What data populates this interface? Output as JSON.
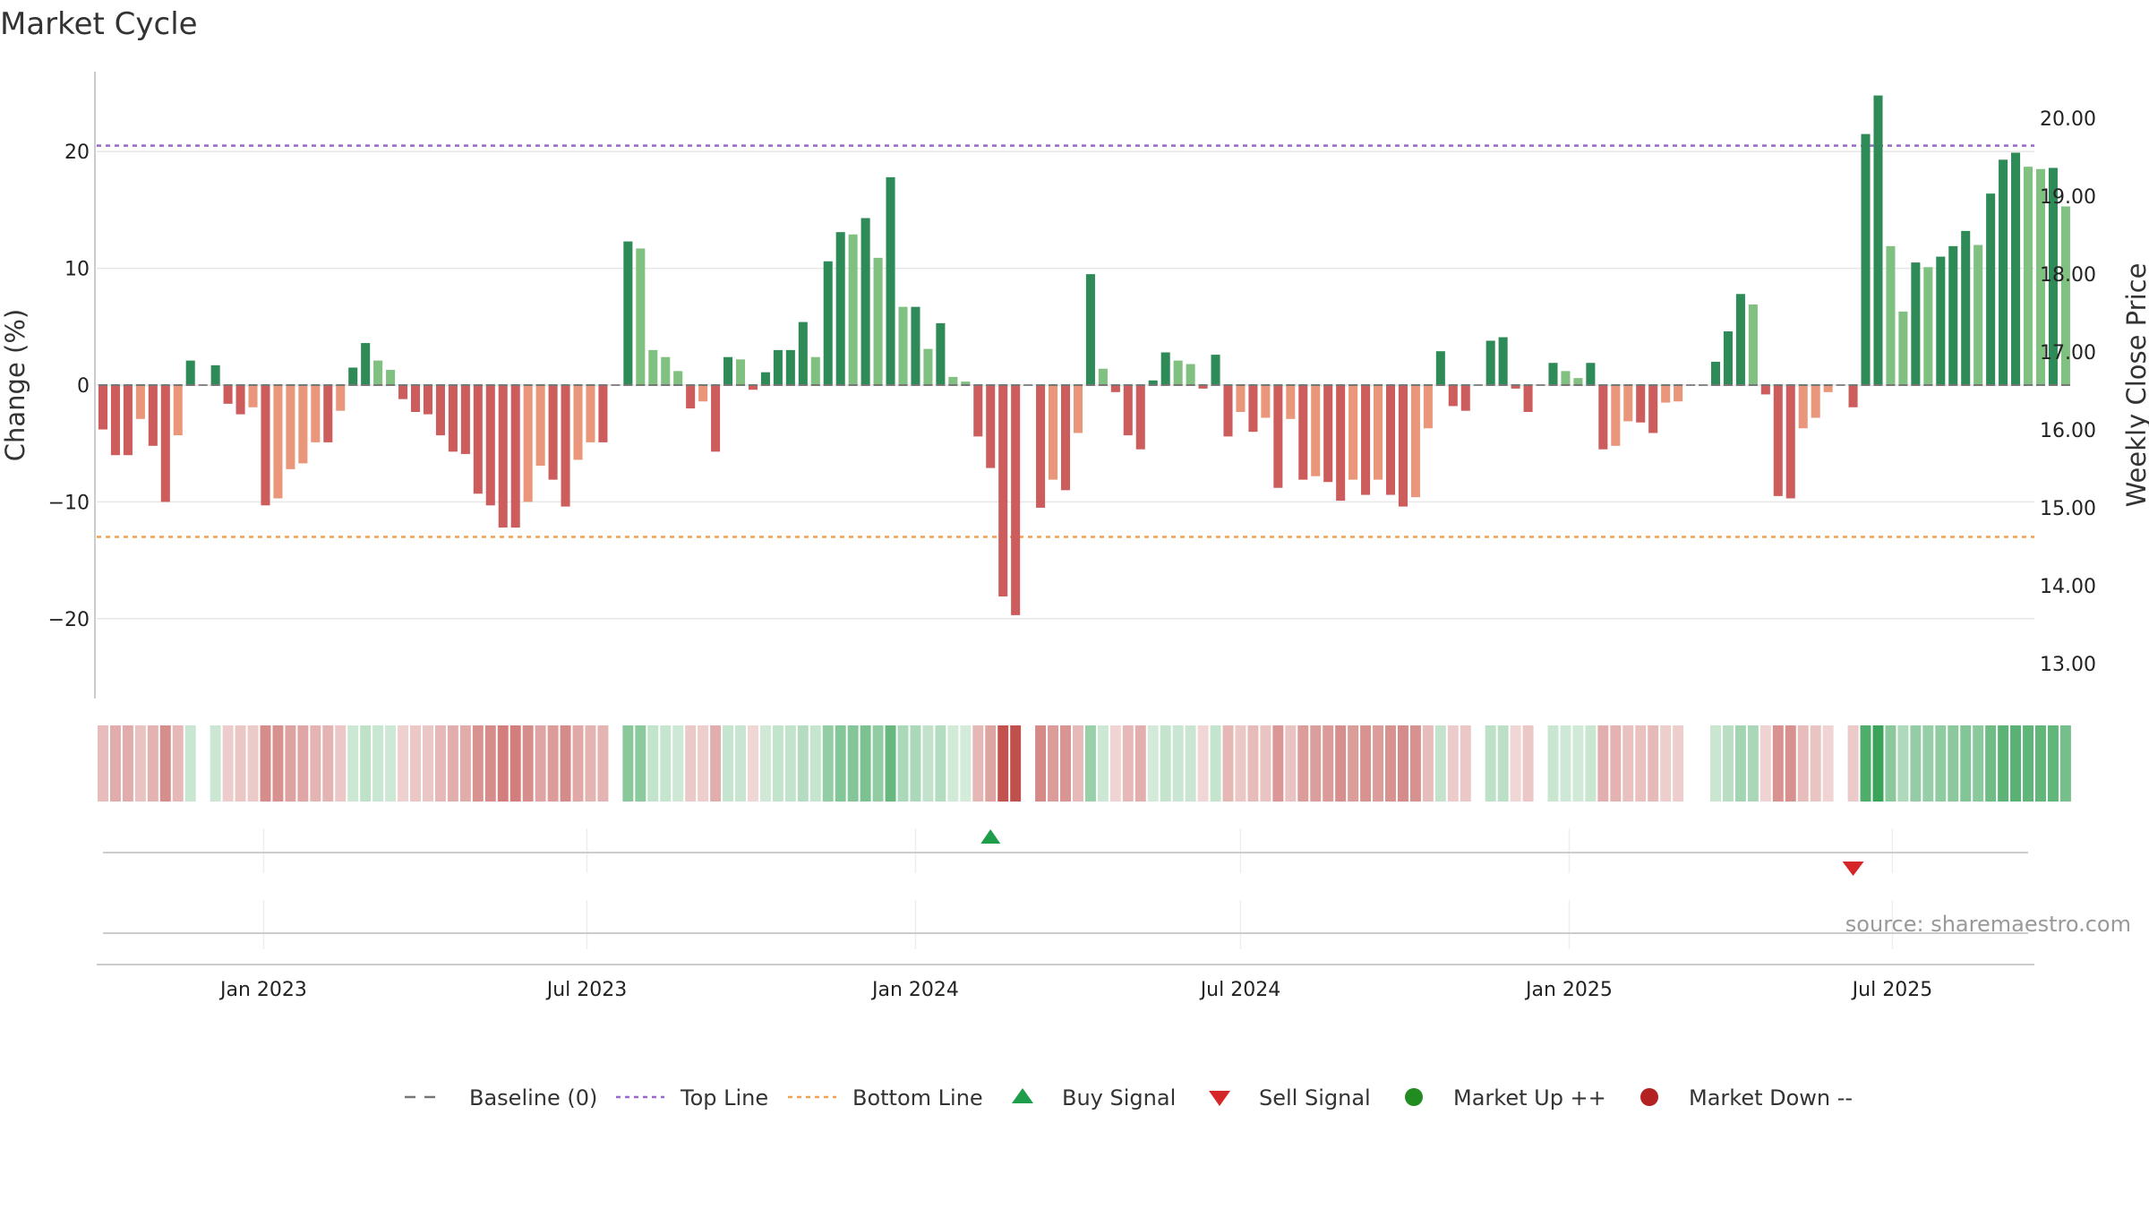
{
  "title": "Market Cycle",
  "source_text": "source: sharemaestro.com",
  "colors": {
    "up_strong": "#2e8b57",
    "up_light": "#80c080",
    "down_strong": "#cd5c5c",
    "down_light": "#e9967a",
    "top_line": "#9966cc",
    "bottom_line": "#f0a050",
    "buy": "#1e9e4a",
    "sell": "#d62728",
    "market_up": "#228b22",
    "market_down": "#b22222"
  },
  "legend": [
    {
      "key": "baseline",
      "label": "Baseline (0)"
    },
    {
      "key": "top",
      "label": "Top Line"
    },
    {
      "key": "bottom",
      "label": "Bottom Line"
    },
    {
      "key": "buy",
      "label": "Buy Signal"
    },
    {
      "key": "sell",
      "label": "Sell Signal"
    },
    {
      "key": "mup",
      "label": "Market Up ++"
    },
    {
      "key": "mdown",
      "label": "Market Down --"
    }
  ],
  "chart_data": {
    "type": "bar",
    "title": "Market Cycle",
    "xlabel": "",
    "ylabel": "Change (%)",
    "y2label": "Weekly Close Price",
    "ylim": [
      -27,
      27
    ],
    "yticks": [
      -20,
      -10,
      0,
      10,
      20
    ],
    "yticklabels": [
      "−20",
      "−10",
      "0",
      "10",
      "20"
    ],
    "y2ticks": [
      "13.00",
      "14.00",
      "15.00",
      "16.00",
      "17.00",
      "18.00",
      "19.00",
      "20.00"
    ],
    "x_start": "2022-10-03",
    "x_step_days": 7,
    "x_end": "2025-09-15",
    "xticks": [
      "2023-01-01",
      "2023-07-01",
      "2024-01-01",
      "2024-07-01",
      "2025-01-01",
      "2025-07-01"
    ],
    "xticklabels": [
      "Jan 2023",
      "Jul 2023",
      "Jan 2024",
      "Jul 2024",
      "Jan 2025",
      "Jul 2025"
    ],
    "top_line": 20.5,
    "bottom_line": -13,
    "grid": true,
    "legend_position": "bottom",
    "series": [
      {
        "values": [
          -3.8,
          -6,
          -6,
          -2.9,
          -5.2,
          -10,
          -4.3,
          2.1,
          0,
          1.7,
          -1.6,
          -2.5,
          -1.9,
          -10.3,
          -9.7,
          -7.2,
          -6.7,
          -4.9,
          -4.9,
          -2.2,
          1.5,
          3.6,
          2.1,
          1.3,
          -1.2,
          -2.3,
          -2.5,
          -4.3,
          -5.7,
          -5.9,
          -9.3,
          -10.3,
          -12.2,
          -12.2,
          -10,
          -6.9,
          -8.1,
          -10.4,
          -6.4,
          -4.9,
          -4.9,
          0,
          12.3,
          11.7,
          3,
          2.4,
          1.2,
          -2,
          -1.4,
          -5.7,
          2.4,
          2.2,
          -0.4,
          1.1,
          3,
          3,
          5.4,
          2.4,
          10.6,
          13.1,
          12.9,
          14.3,
          10.9,
          17.8,
          6.7,
          6.7,
          3.1,
          5.3,
          0.7,
          0.3,
          -4.4,
          -7.1,
          -18.1,
          -19.7,
          0,
          -10.5,
          -8.1,
          -9,
          -4.1,
          9.5,
          1.4,
          -0.6,
          -4.3,
          -5.5,
          0.4,
          2.8,
          2.1,
          1.8,
          -0.3,
          2.6,
          -4.4,
          -2.3,
          -4,
          -2.8,
          -8.8,
          -2.9,
          -8.1,
          -7.8,
          -8.3,
          -9.9,
          -8.1,
          -9.4,
          -8.1,
          -9.4,
          -10.4,
          -9.6,
          -3.7,
          2.9,
          -1.8,
          -2.2,
          0,
          3.8,
          4.1,
          -0.3,
          -2.3,
          0,
          1.9,
          1.2,
          0.6,
          1.9,
          -5.5,
          -5.2,
          -3.1,
          -3.2,
          -4.1,
          -1.5,
          -1.4,
          0,
          0,
          2,
          4.6,
          7.8,
          6.9,
          -0.8,
          -9.5,
          -9.7,
          -3.7,
          -2.8,
          -0.6,
          0,
          -1.9,
          21.5,
          24.8,
          11.9,
          6.3,
          10.5,
          10.1,
          11,
          11.9,
          13.2,
          12,
          16.4,
          19.3,
          19.9,
          18.7,
          18.5,
          18.6,
          15.3
        ]
      }
    ],
    "buy_signals": [
      "2024-02-12"
    ],
    "sell_signals": [
      "2025-06-09"
    ]
  }
}
